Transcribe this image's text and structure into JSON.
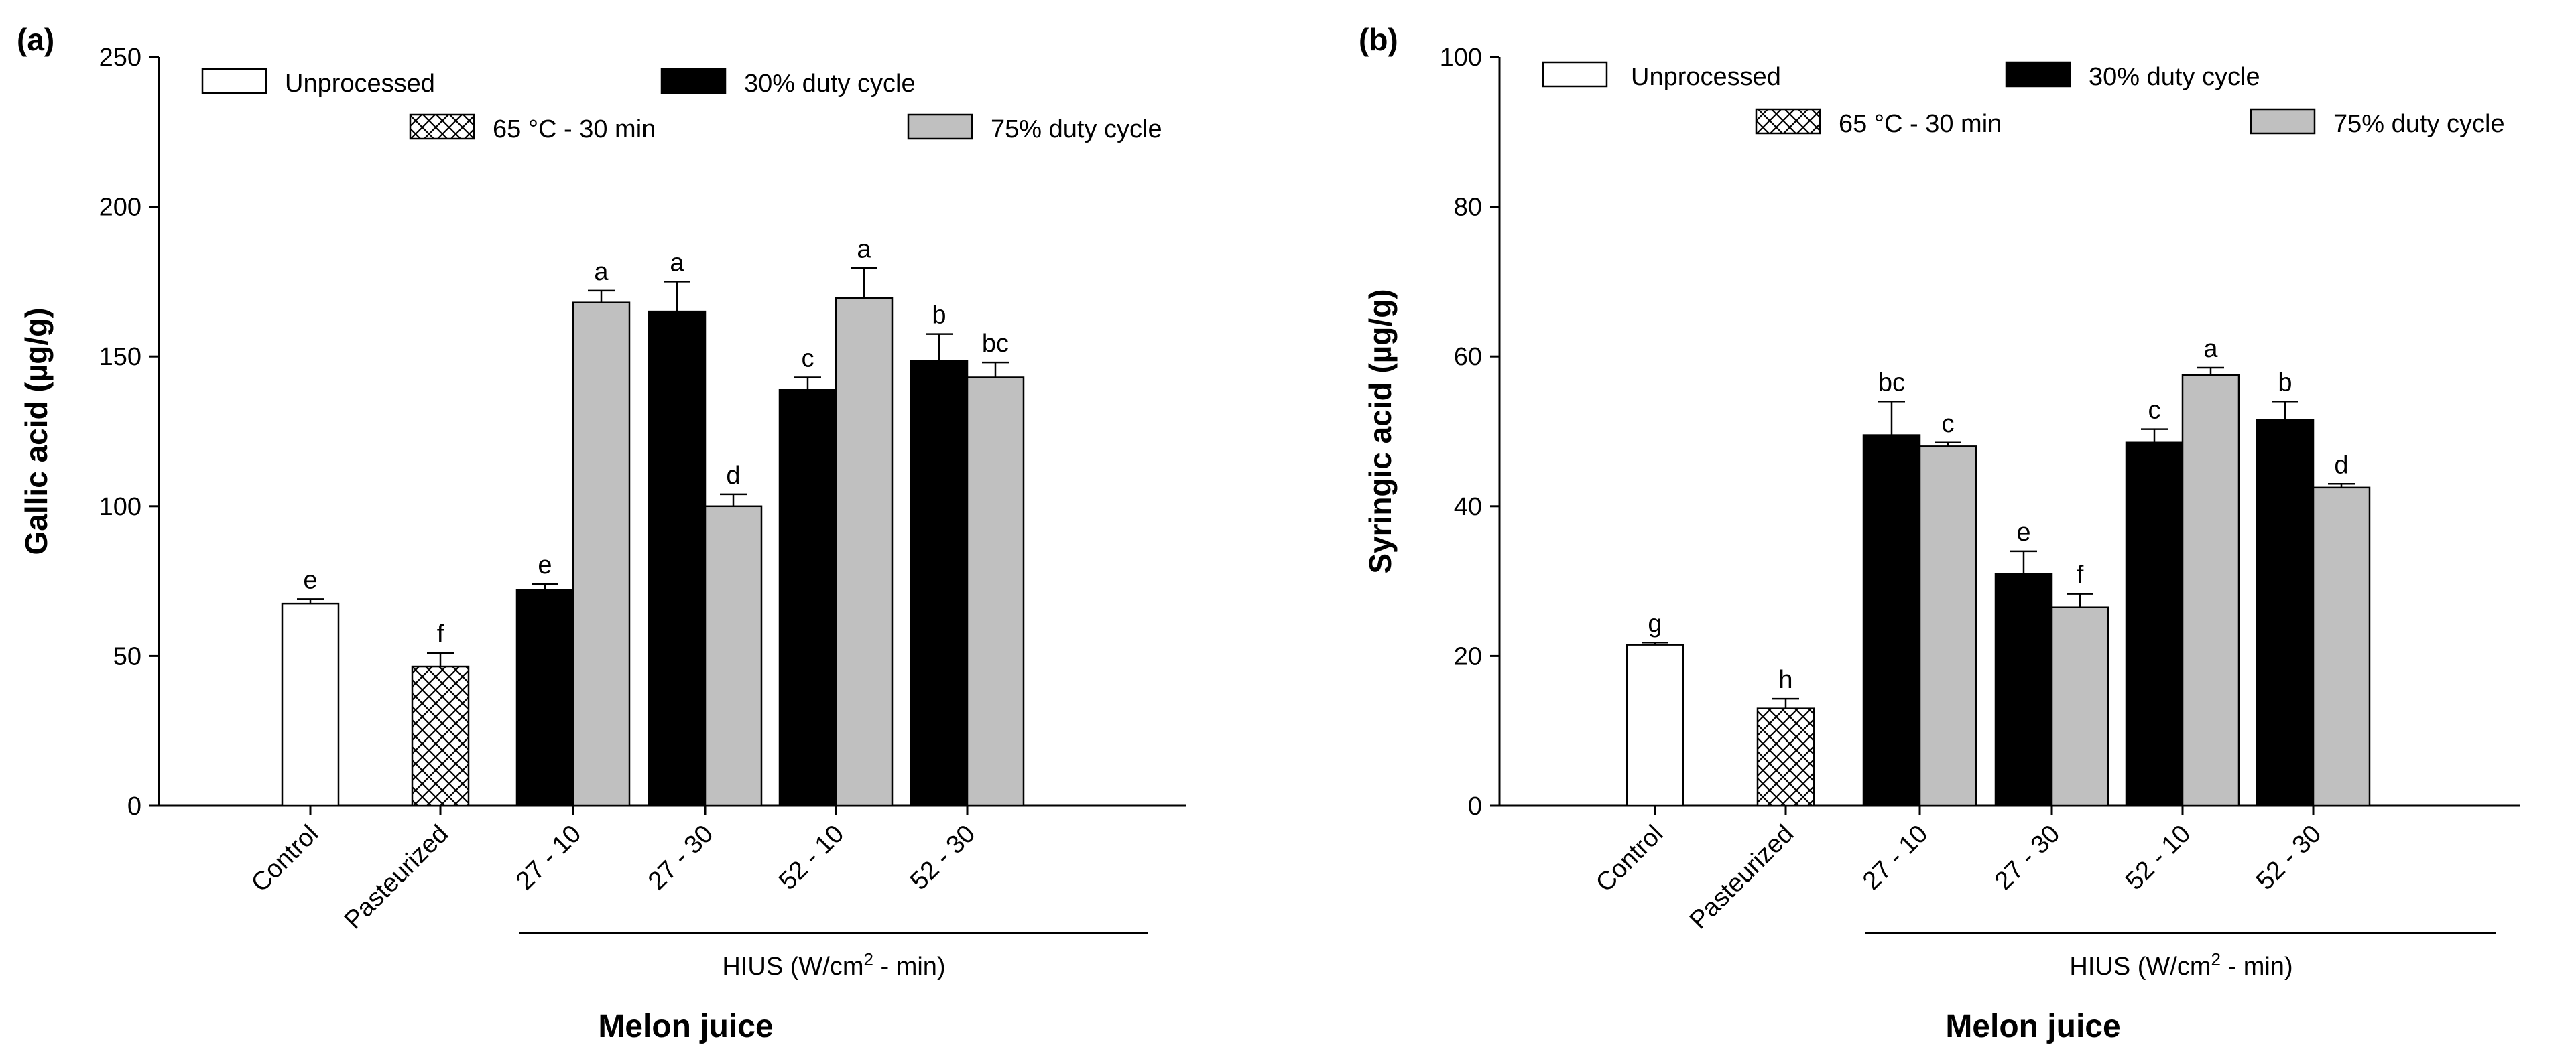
{
  "chart_data": [
    {
      "type": "bar",
      "panel_label": "(a)",
      "ylabel": "Gallic acid (µg/g)",
      "ylim": [
        0,
        250
      ],
      "yticks": [
        0,
        50,
        100,
        150,
        200,
        250
      ],
      "xlabel": "Melon juice",
      "hius_label": {
        "prefix": "HIUS (W/cm",
        "sup": "2",
        "suffix": " - min)"
      },
      "categories": [
        "Control",
        "Pasteurized",
        "27 - 10",
        "27 - 30",
        "52 - 10",
        "52 - 30"
      ],
      "legend": {
        "unprocessed": "Unprocessed",
        "pasteurized": "65 °C - 30 min",
        "duty30": "30% duty cycle",
        "duty75": "75% duty cycle"
      },
      "series": [
        {
          "name": "Unprocessed",
          "style": "white",
          "values": [
            67.5,
            null,
            null,
            null,
            null,
            null
          ],
          "errors": [
            1.5,
            null,
            null,
            null,
            null,
            null
          ],
          "letters": [
            "e",
            null,
            null,
            null,
            null,
            null
          ]
        },
        {
          "name": "65 °C - 30 min",
          "style": "hatch",
          "values": [
            null,
            46.5,
            null,
            null,
            null,
            null
          ],
          "errors": [
            null,
            4.5,
            null,
            null,
            null,
            null
          ],
          "letters": [
            null,
            "f",
            null,
            null,
            null,
            null
          ]
        },
        {
          "name": "30% duty cycle",
          "style": "black",
          "values": [
            null,
            null,
            72,
            165,
            139,
            148.5
          ],
          "errors": [
            null,
            null,
            2,
            10,
            4,
            9
          ],
          "letters": [
            null,
            null,
            "e",
            "a",
            "c",
            "b"
          ]
        },
        {
          "name": "75% duty cycle",
          "style": "gray",
          "values": [
            null,
            null,
            168,
            100,
            169.5,
            143
          ],
          "errors": [
            null,
            null,
            4,
            4,
            10,
            5
          ],
          "letters": [
            null,
            null,
            "a",
            "d",
            "a",
            "bc"
          ]
        }
      ],
      "colors": {
        "black": "#000000",
        "gray": "#c0c0c0",
        "white": "#ffffff"
      }
    },
    {
      "type": "bar",
      "panel_label": "(b)",
      "ylabel": "Syringic acid (µg/g)",
      "ylim": [
        0,
        100
      ],
      "yticks": [
        0,
        20,
        40,
        60,
        80,
        100
      ],
      "xlabel": "Melon juice",
      "hius_label": {
        "prefix": "HIUS (W/cm",
        "sup": "2",
        "suffix": " - min)"
      },
      "categories": [
        "Control",
        "Pasteurized",
        "27 - 10",
        "27 - 30",
        "52 - 10",
        "52 - 30"
      ],
      "legend": {
        "unprocessed": "Unprocessed",
        "pasteurized": "65 °C - 30 min",
        "duty30": "30% duty cycle",
        "duty75": "75% duty cycle"
      },
      "series": [
        {
          "name": "Unprocessed",
          "style": "white",
          "values": [
            21.5,
            null,
            null,
            null,
            null,
            null
          ],
          "errors": [
            0.3,
            null,
            null,
            null,
            null,
            null
          ],
          "letters": [
            "g",
            null,
            null,
            null,
            null,
            null
          ]
        },
        {
          "name": "65 °C - 30 min",
          "style": "hatch",
          "values": [
            null,
            13,
            null,
            null,
            null,
            null
          ],
          "errors": [
            null,
            1.3,
            null,
            null,
            null,
            null
          ],
          "letters": [
            null,
            "h",
            null,
            null,
            null,
            null
          ]
        },
        {
          "name": "30% duty cycle",
          "style": "black",
          "values": [
            null,
            null,
            49.5,
            31,
            48.5,
            51.5
          ],
          "errors": [
            null,
            null,
            4.5,
            3,
            1.8,
            2.5
          ],
          "letters": [
            null,
            null,
            "bc",
            "e",
            "c",
            "b"
          ]
        },
        {
          "name": "75% duty cycle",
          "style": "gray",
          "values": [
            null,
            null,
            48,
            26.5,
            57.5,
            42.5
          ],
          "errors": [
            null,
            null,
            0.5,
            1.8,
            1,
            0.5
          ],
          "letters": [
            null,
            null,
            "c",
            "f",
            "a",
            "d"
          ]
        }
      ],
      "colors": {
        "black": "#000000",
        "gray": "#c0c0c0",
        "white": "#ffffff"
      }
    }
  ]
}
